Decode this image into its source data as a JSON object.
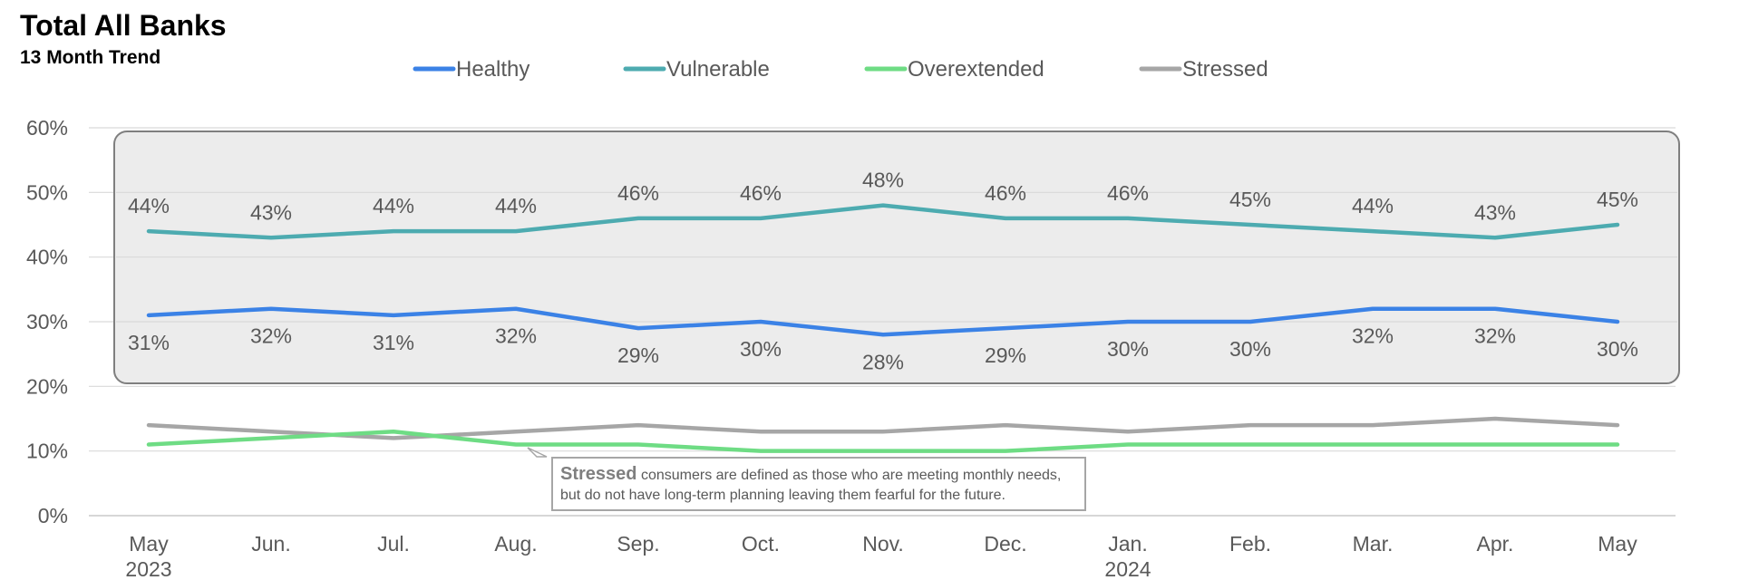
{
  "title": "Total All Banks",
  "subtitle": "13 Month Trend",
  "callout": {
    "heading": "Stressed",
    "text": " consumers are defined as those who are meeting monthly needs, but do not have long-term planning leaving them fearful for the future."
  },
  "chart_data": {
    "type": "line",
    "categories": [
      "May",
      "Jun.",
      "Jul.",
      "Aug.",
      "Sep.",
      "Oct.",
      "Nov.",
      "Dec.",
      "Jan.",
      "Feb.",
      "Mar.",
      "Apr.",
      "May"
    ],
    "year_labels": [
      {
        "index": 0,
        "label": "2023"
      },
      {
        "index": 8,
        "label": "2024"
      }
    ],
    "ylim": [
      0,
      60
    ],
    "yticks": [
      "0%",
      "10%",
      "20%",
      "30%",
      "40%",
      "50%",
      "60%"
    ],
    "ytick_values": [
      0,
      10,
      20,
      30,
      40,
      50,
      60
    ],
    "grid": true,
    "legend": "top",
    "series": [
      {
        "name": "Healthy",
        "color": "#3b82e6",
        "values": [
          31,
          32,
          31,
          32,
          29,
          30,
          28,
          29,
          30,
          30,
          32,
          32,
          30
        ],
        "labels": [
          "31%",
          "32%",
          "31%",
          "32%",
          "29%",
          "30%",
          "28%",
          "29%",
          "30%",
          "30%",
          "32%",
          "32%",
          "30%"
        ],
        "label_position": "below"
      },
      {
        "name": "Vulnerable",
        "color": "#4dabb0",
        "values": [
          44,
          43,
          44,
          44,
          46,
          46,
          48,
          46,
          46,
          45,
          44,
          43,
          45
        ],
        "labels": [
          "44%",
          "43%",
          "44%",
          "44%",
          "46%",
          "46%",
          "48%",
          "46%",
          "46%",
          "45%",
          "44%",
          "43%",
          "45%"
        ],
        "label_position": "above"
      },
      {
        "name": "Overextended",
        "color": "#6edc84",
        "values": [
          11,
          12,
          13,
          11,
          11,
          10,
          10,
          10,
          11,
          11,
          11,
          11,
          11
        ]
      },
      {
        "name": "Stressed",
        "color": "#a6a6a6",
        "values": [
          14,
          13,
          12,
          13,
          14,
          13,
          13,
          14,
          13,
          14,
          14,
          15,
          14
        ]
      }
    ]
  }
}
